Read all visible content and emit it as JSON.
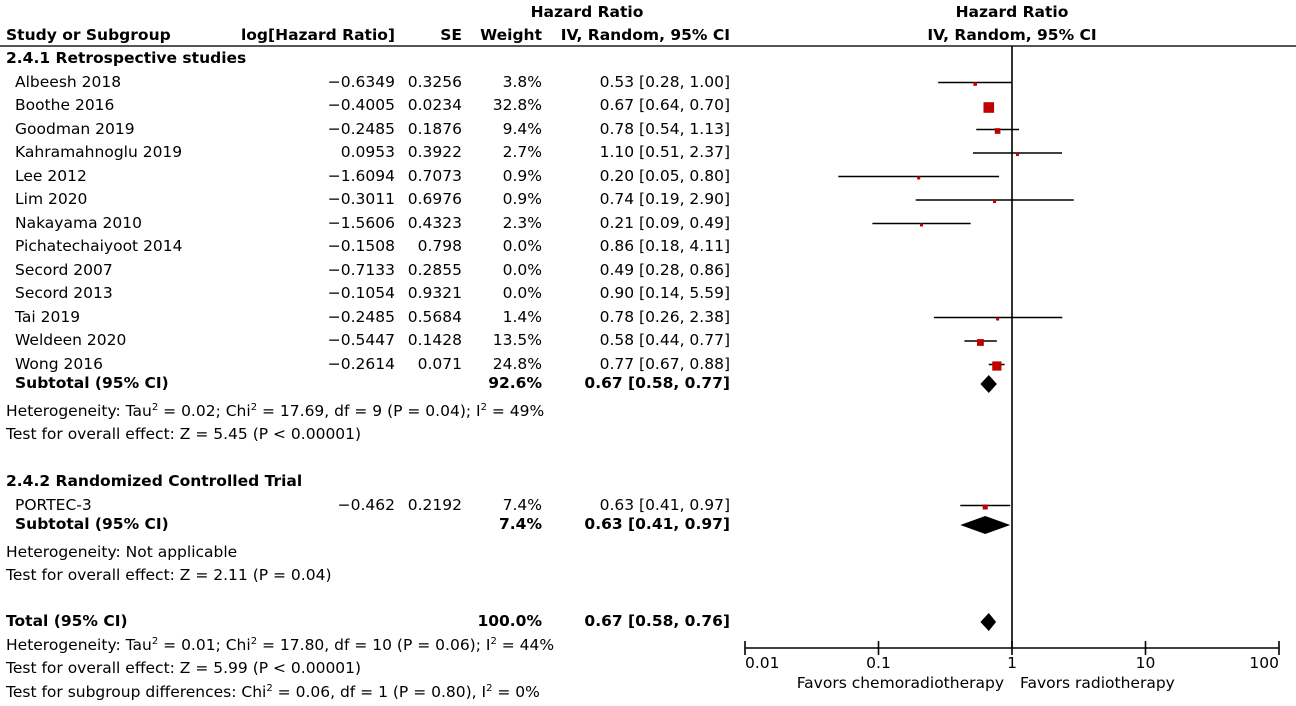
{
  "header": {
    "study_col": "Study or Subgroup",
    "loghr_col": "log[Hazard Ratio]",
    "se_col": "SE",
    "weight_col": "Weight",
    "hr_col_line1": "Hazard Ratio",
    "hr_col_line2": "IV, Random, 95% CI",
    "plot_col_line1": "Hazard Ratio",
    "plot_col_line2": "IV, Random, 95% CI"
  },
  "chart_data": {
    "type": "forest",
    "measure": "Hazard Ratio",
    "method": "IV, Random, 95% CI",
    "x_scale": "log",
    "xlim": [
      0.01,
      100
    ],
    "x_ticks": [
      "0.01",
      "0.1",
      "1",
      "10",
      "100"
    ],
    "x_tick_values": [
      0.01,
      0.1,
      1,
      10,
      100
    ],
    "reference_line": 1,
    "left_label": "Favors chemoradiotherapy",
    "right_label": "Favors radiotherapy",
    "subgroups": [
      {
        "title": "2.4.1 Retrospective studies",
        "studies": [
          {
            "name": "Albeesh 2018",
            "loghr": "−0.6349",
            "se": "0.3256",
            "weight": "3.8%",
            "weight_value": 3.8,
            "hr": 0.53,
            "lo": 0.28,
            "hi": 1.0,
            "ci_text": "0.53 [0.28, 1.00]"
          },
          {
            "name": "Boothe 2016",
            "loghr": "−0.4005",
            "se": "0.0234",
            "weight": "32.8%",
            "weight_value": 32.8,
            "hr": 0.67,
            "lo": 0.64,
            "hi": 0.7,
            "ci_text": "0.67 [0.64, 0.70]"
          },
          {
            "name": "Goodman 2019",
            "loghr": "−0.2485",
            "se": "0.1876",
            "weight": "9.4%",
            "weight_value": 9.4,
            "hr": 0.78,
            "lo": 0.54,
            "hi": 1.13,
            "ci_text": "0.78 [0.54, 1.13]"
          },
          {
            "name": "Kahramahnoglu 2019",
            "loghr": "0.0953",
            "se": "0.3922",
            "weight": "2.7%",
            "weight_value": 2.7,
            "hr": 1.1,
            "lo": 0.51,
            "hi": 2.37,
            "ci_text": "1.10 [0.51, 2.37]"
          },
          {
            "name": "Lee 2012",
            "loghr": "−1.6094",
            "se": "0.7073",
            "weight": "0.9%",
            "weight_value": 0.9,
            "hr": 0.2,
            "lo": 0.05,
            "hi": 0.8,
            "ci_text": "0.20 [0.05, 0.80]"
          },
          {
            "name": "Lim 2020",
            "loghr": "−0.3011",
            "se": "0.6976",
            "weight": "0.9%",
            "weight_value": 0.9,
            "hr": 0.74,
            "lo": 0.19,
            "hi": 2.9,
            "ci_text": "0.74 [0.19, 2.90]"
          },
          {
            "name": "Nakayama 2010",
            "loghr": "−1.5606",
            "se": "0.4323",
            "weight": "2.3%",
            "weight_value": 2.3,
            "hr": 0.21,
            "lo": 0.09,
            "hi": 0.49,
            "ci_text": "0.21 [0.09, 0.49]"
          },
          {
            "name": "Pichatechaiyoot 2014",
            "loghr": "−0.1508",
            "se": "0.798",
            "weight": "0.0%",
            "weight_value": 0.0,
            "hr": 0.86,
            "lo": 0.18,
            "hi": 4.11,
            "ci_text": "0.86 [0.18, 4.11]"
          },
          {
            "name": "Secord 2007",
            "loghr": "−0.7133",
            "se": "0.2855",
            "weight": "0.0%",
            "weight_value": 0.0,
            "hr": 0.49,
            "lo": 0.28,
            "hi": 0.86,
            "ci_text": "0.49 [0.28, 0.86]"
          },
          {
            "name": "Secord 2013",
            "loghr": "−0.1054",
            "se": "0.9321",
            "weight": "0.0%",
            "weight_value": 0.0,
            "hr": 0.9,
            "lo": 0.14,
            "hi": 5.59,
            "ci_text": "0.90 [0.14, 5.59]"
          },
          {
            "name": "Tai 2019",
            "loghr": "−0.2485",
            "se": "0.5684",
            "weight": "1.4%",
            "weight_value": 1.4,
            "hr": 0.78,
            "lo": 0.26,
            "hi": 2.38,
            "ci_text": "0.78 [0.26, 2.38]"
          },
          {
            "name": "Weldeen 2020",
            "loghr": "−0.5447",
            "se": "0.1428",
            "weight": "13.5%",
            "weight_value": 13.5,
            "hr": 0.58,
            "lo": 0.44,
            "hi": 0.77,
            "ci_text": "0.58 [0.44, 0.77]"
          },
          {
            "name": "Wong 2016",
            "loghr": "−0.2614",
            "se": "0.071",
            "weight": "24.8%",
            "weight_value": 24.8,
            "hr": 0.77,
            "lo": 0.67,
            "hi": 0.88,
            "ci_text": "0.77 [0.67, 0.88]"
          }
        ],
        "subtotal": {
          "label": "Subtotal (95% CI)",
          "weight": "92.6%",
          "hr": 0.67,
          "lo": 0.58,
          "hi": 0.77,
          "ci_text": "0.67 [0.58, 0.77]"
        },
        "heterogeneity": {
          "prefix": "Heterogeneity: Tau",
          "tau2": " = 0.02; Chi",
          "chi2": " = 17.69, df = 9 (P = 0.04); I",
          "i2": " = 49%"
        },
        "overall_effect": "Test for overall effect: Z = 5.45 (P < 0.00001)"
      },
      {
        "title": "2.4.2 Randomized Controlled Trial",
        "studies": [
          {
            "name": "PORTEC-3",
            "loghr": "−0.462",
            "se": "0.2192",
            "weight": "7.4%",
            "weight_value": 7.4,
            "hr": 0.63,
            "lo": 0.41,
            "hi": 0.97,
            "ci_text": "0.63 [0.41, 0.97]"
          }
        ],
        "subtotal": {
          "label": "Subtotal (95% CI)",
          "weight": "7.4%",
          "hr": 0.63,
          "lo": 0.41,
          "hi": 0.97,
          "ci_text": "0.63 [0.41, 0.97]"
        },
        "heterogeneity_text": "Heterogeneity: Not applicable",
        "overall_effect": "Test for overall effect: Z = 2.11 (P = 0.04)"
      }
    ],
    "total": {
      "label": "Total (95% CI)",
      "weight": "100.0%",
      "hr": 0.67,
      "lo": 0.58,
      "hi": 0.76,
      "ci_text": "0.67 [0.58, 0.76]",
      "heterogeneity": {
        "prefix": "Heterogeneity: Tau",
        "tau2": " = 0.01; Chi",
        "chi2": " = 17.80, df = 10 (P = 0.06); I",
        "i2": " = 44%"
      },
      "overall_effect": "Test for overall effect: Z = 5.99 (P < 0.00001)",
      "subgroup_diff": {
        "prefix": "Test for subgroup differences: Chi",
        "chi2": " = 0.06, df = 1 (P = 0.80), I",
        "i2": " = 0%"
      }
    },
    "colors": {
      "square": "#c00000",
      "diamond": "#000000",
      "line": "#000000",
      "header_rule": "#555555"
    }
  }
}
